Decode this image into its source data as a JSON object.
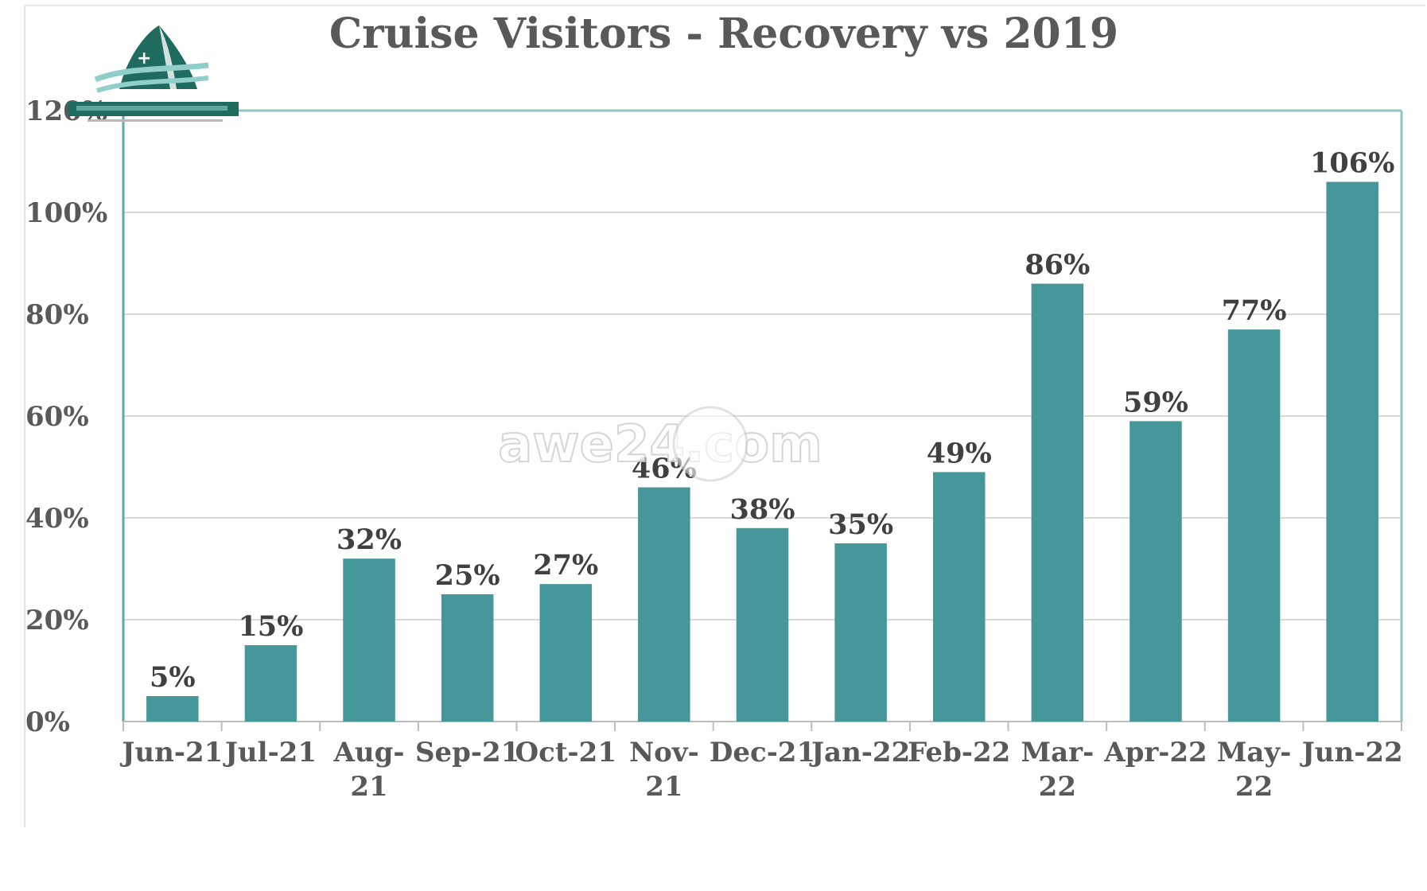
{
  "chart_data": {
    "type": "bar",
    "title": "Cruise Visitors - Recovery vs 2019",
    "categories": [
      "Jun-21",
      "Jul-21",
      "Aug-21",
      "Sep-21",
      "Oct-21",
      "Nov-21",
      "Dec-21",
      "Jan-22",
      "Feb-22",
      "Mar-22",
      "Apr-22",
      "May-22",
      "Jun-22"
    ],
    "category_lines": [
      [
        "Jun-21"
      ],
      [
        "Jul-21"
      ],
      [
        "Aug-",
        "21"
      ],
      [
        "Sep-21"
      ],
      [
        "Oct-21"
      ],
      [
        "Nov-",
        "21"
      ],
      [
        "Dec-21"
      ],
      [
        "Jan-22"
      ],
      [
        "Feb-22"
      ],
      [
        "Mar-",
        "22"
      ],
      [
        "Apr-22"
      ],
      [
        "May-",
        "22"
      ],
      [
        "Jun-22"
      ]
    ],
    "values": [
      5,
      15,
      32,
      25,
      27,
      46,
      38,
      35,
      49,
      86,
      59,
      77,
      106
    ],
    "data_labels": [
      "5%",
      "15%",
      "32%",
      "25%",
      "27%",
      "46%",
      "38%",
      "35%",
      "49%",
      "86%",
      "59%",
      "77%",
      "106%"
    ],
    "ylim": [
      0,
      120
    ],
    "y_ticks": [
      0,
      20,
      40,
      60,
      80,
      100,
      120
    ],
    "y_tick_labels": [
      "0%",
      "20%",
      "40%",
      "60%",
      "80%",
      "100%",
      "120%"
    ],
    "xlabel": "",
    "ylabel": "",
    "grid": true,
    "bar_color": "#45979A",
    "grid_color": "#d9d9d9"
  },
  "watermark": "awe24.com",
  "logo": {
    "name": "harbour-logo",
    "colors": [
      "#1f6b5e",
      "#8fcfc7"
    ]
  }
}
